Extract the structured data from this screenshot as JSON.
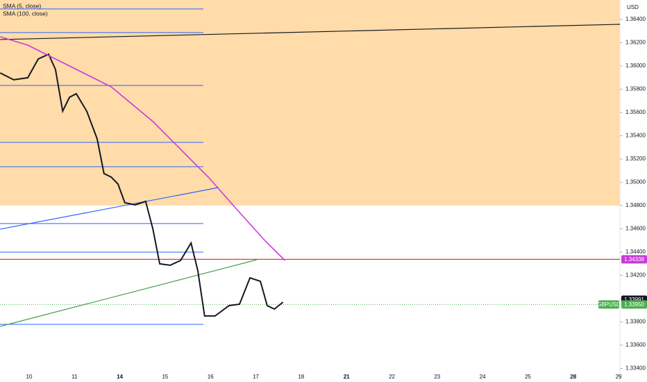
{
  "chart_data": {
    "type": "line",
    "currency": "USD",
    "symbol": "GBPUSD",
    "xlim": [
      -0.643,
      13.03
    ],
    "ylim": [
      1.33343,
      1.36567
    ],
    "xticks": [
      {
        "value": 0,
        "label": "10"
      },
      {
        "value": 1,
        "label": "11"
      },
      {
        "value": 2,
        "label": "14"
      },
      {
        "value": 3,
        "label": "15"
      },
      {
        "value": 4,
        "label": "16"
      },
      {
        "value": 5,
        "label": "17"
      },
      {
        "value": 6,
        "label": "18"
      },
      {
        "value": 7,
        "label": "21"
      },
      {
        "value": 8,
        "label": "22"
      },
      {
        "value": 9,
        "label": "23"
      },
      {
        "value": 10,
        "label": "24"
      },
      {
        "value": 11,
        "label": "25"
      },
      {
        "value": 12,
        "label": "28"
      },
      {
        "value": 13,
        "label": "29"
      }
    ],
    "yticks": [
      {
        "value": 1.334,
        "label": "1.33400"
      },
      {
        "value": 1.336,
        "label": "1.33600"
      },
      {
        "value": 1.338,
        "label": "1.33800"
      },
      {
        "value": 1.34,
        "label": "1.34000"
      },
      {
        "value": 1.342,
        "label": "1.34200"
      },
      {
        "value": 1.344,
        "label": "1.34400"
      },
      {
        "value": 1.346,
        "label": "1.34600"
      },
      {
        "value": 1.348,
        "label": "1.34800"
      },
      {
        "value": 1.35,
        "label": "1.35000"
      },
      {
        "value": 1.352,
        "label": "1.35200"
      },
      {
        "value": 1.354,
        "label": "1.35400"
      },
      {
        "value": 1.356,
        "label": "1.35600"
      },
      {
        "value": 1.358,
        "label": "1.35800"
      },
      {
        "value": 1.36,
        "label": "1.36000"
      },
      {
        "value": 1.362,
        "label": "1.36200"
      },
      {
        "value": 1.364,
        "label": "1.36400"
      }
    ],
    "zone": {
      "from": 1.348,
      "color": "#ffdcaa"
    },
    "series": [
      {
        "name": "SMA (5, close)",
        "color": "#131722",
        "x": [
          -0.64,
          -0.34,
          -0.03,
          0.2,
          0.43,
          0.58,
          0.74,
          0.89,
          1.04,
          1.27,
          1.5,
          1.65,
          1.81,
          1.96,
          2.11,
          2.34,
          2.57,
          2.73,
          2.88,
          3.11,
          3.34,
          3.57,
          3.72,
          3.87,
          4.1,
          4.41,
          4.64,
          4.87,
          5.1,
          5.25,
          5.41,
          5.6
        ],
        "values": [
          1.3594,
          1.35881,
          1.35899,
          1.3606,
          1.36101,
          1.3597,
          1.35612,
          1.35731,
          1.35761,
          1.35612,
          1.35373,
          1.35075,
          1.35045,
          1.34985,
          1.34824,
          1.34806,
          1.34836,
          1.34597,
          1.34299,
          1.34287,
          1.34328,
          1.34478,
          1.34239,
          1.33851,
          1.33851,
          1.3394,
          1.33952,
          1.34179,
          1.34149,
          1.3394,
          1.3391,
          1.3397
        ]
      },
      {
        "name": "SMA (100, close)",
        "color": "#c83ad8",
        "x": [
          -0.64,
          -0.03,
          0.89,
          1.81,
          2.73,
          3.34,
          3.95,
          4.56,
          5.18,
          5.64
        ],
        "values": [
          1.36251,
          1.36179,
          1.36,
          1.35821,
          1.35522,
          1.35284,
          1.35045,
          1.34776,
          1.34507,
          1.34328
        ]
      }
    ],
    "levels": {
      "color": "#2962ff",
      "x_end": 3.84,
      "values": [
        1.3649,
        1.36287,
        1.35833,
        1.35343,
        1.35134,
        1.34645,
        1.344,
        1.33779
      ]
    },
    "trendlines": [
      {
        "color": "#131722",
        "x": [
          -0.64,
          13.03
        ],
        "values": [
          1.36227,
          1.36358
        ]
      },
      {
        "color": "#2962ff",
        "x": [
          -0.64,
          4.18
        ],
        "values": [
          1.34597,
          1.34955
        ]
      },
      {
        "color": "#43a047",
        "x": [
          -0.64,
          5.02
        ],
        "values": [
          1.33761,
          1.34334
        ]
      }
    ],
    "hline": {
      "value": 1.34338,
      "color": "#e53935"
    },
    "last_line": {
      "value": 1.3395,
      "color": "#4caf50"
    },
    "price_tags": [
      {
        "value": 1.34338,
        "label": "1.34338",
        "color": "#c83ad8"
      },
      {
        "value": 1.33991,
        "label": "1.33991",
        "color": "#131722"
      },
      {
        "value": 1.3395,
        "label": "1.33950",
        "color": "#4caf50"
      }
    ]
  }
}
